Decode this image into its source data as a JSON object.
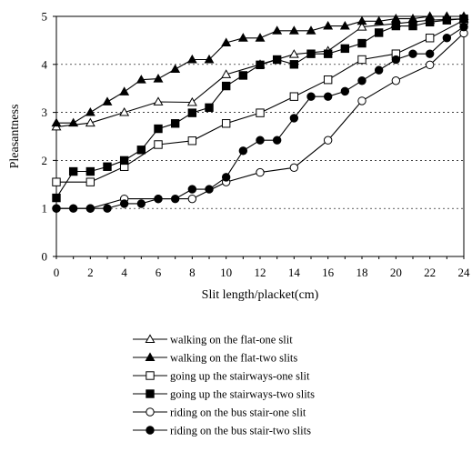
{
  "chart_data": {
    "type": "line",
    "ylabel": "Pleasantness",
    "xlabel": "Slit length/placket(cm)",
    "xlim": [
      0,
      24
    ],
    "ylim": [
      0,
      5
    ],
    "x_ticks": [
      0,
      2,
      4,
      6,
      8,
      10,
      12,
      14,
      16,
      18,
      20,
      22,
      24
    ],
    "y_ticks": [
      0,
      1,
      2,
      3,
      4,
      5
    ],
    "grid": "dashed-y",
    "legend": "bottom",
    "series": [
      {
        "name": "walking on the flat-one slit",
        "marker": "triangle-open",
        "x": [
          0,
          2,
          4,
          6,
          8,
          10,
          12,
          14,
          16,
          18,
          20,
          22,
          24
        ],
        "y": [
          2.7,
          2.78,
          3.0,
          3.22,
          3.21,
          3.79,
          4.0,
          4.21,
          4.28,
          4.78,
          4.85,
          4.92,
          4.95
        ]
      },
      {
        "name": "walking on the flat-two slits",
        "marker": "triangle-filled",
        "x": [
          0,
          1,
          2,
          3,
          4,
          5,
          6,
          7,
          8,
          9,
          10,
          11,
          12,
          13,
          14,
          15,
          16,
          17,
          18,
          19,
          20,
          21,
          22,
          23,
          24
        ],
        "y": [
          2.78,
          2.78,
          3.0,
          3.22,
          3.43,
          3.68,
          3.7,
          3.9,
          4.1,
          4.1,
          4.45,
          4.55,
          4.55,
          4.7,
          4.7,
          4.7,
          4.8,
          4.8,
          4.9,
          4.9,
          4.95,
          4.95,
          5.0,
          5.0,
          5.0
        ]
      },
      {
        "name": "going up the stairways-one slit",
        "marker": "square-open",
        "x": [
          0,
          2,
          4,
          6,
          8,
          10,
          12,
          14,
          16,
          18,
          20,
          22,
          24
        ],
        "y": [
          1.55,
          1.55,
          1.87,
          2.33,
          2.41,
          2.77,
          2.99,
          3.33,
          3.68,
          4.1,
          4.22,
          4.55,
          4.92
        ]
      },
      {
        "name": "going up the stairways-two slits",
        "marker": "square-filled",
        "x": [
          0,
          1,
          2,
          3,
          4,
          5,
          6,
          7,
          8,
          9,
          10,
          11,
          12,
          13,
          14,
          15,
          16,
          17,
          18,
          19,
          20,
          21,
          22,
          23,
          24
        ],
        "y": [
          1.22,
          1.77,
          1.77,
          1.87,
          2.0,
          2.22,
          2.66,
          2.77,
          2.99,
          3.1,
          3.55,
          3.77,
          3.99,
          4.1,
          4.0,
          4.22,
          4.22,
          4.33,
          4.44,
          4.66,
          4.8,
          4.8,
          4.88,
          4.92,
          4.95
        ]
      },
      {
        "name": "riding on the bus stair-one slit",
        "marker": "circle-open",
        "x": [
          0,
          2,
          4,
          6,
          8,
          10,
          12,
          14,
          16,
          18,
          20,
          22,
          24
        ],
        "y": [
          1.0,
          1.0,
          1.2,
          1.2,
          1.2,
          1.55,
          1.75,
          1.85,
          2.42,
          3.24,
          3.66,
          3.99,
          4.65
        ]
      },
      {
        "name": "riding on the bus stair-two slits",
        "marker": "circle-filled",
        "x": [
          0,
          1,
          2,
          3,
          4,
          5,
          6,
          7,
          8,
          9,
          10,
          11,
          12,
          13,
          14,
          15,
          16,
          17,
          18,
          19,
          20,
          21,
          22,
          23,
          24
        ],
        "y": [
          1.0,
          1.0,
          1.0,
          1.0,
          1.1,
          1.1,
          1.2,
          1.2,
          1.4,
          1.4,
          1.65,
          2.2,
          2.42,
          2.42,
          2.88,
          3.33,
          3.33,
          3.44,
          3.66,
          3.88,
          4.1,
          4.22,
          4.22,
          4.55,
          4.78
        ]
      }
    ]
  }
}
